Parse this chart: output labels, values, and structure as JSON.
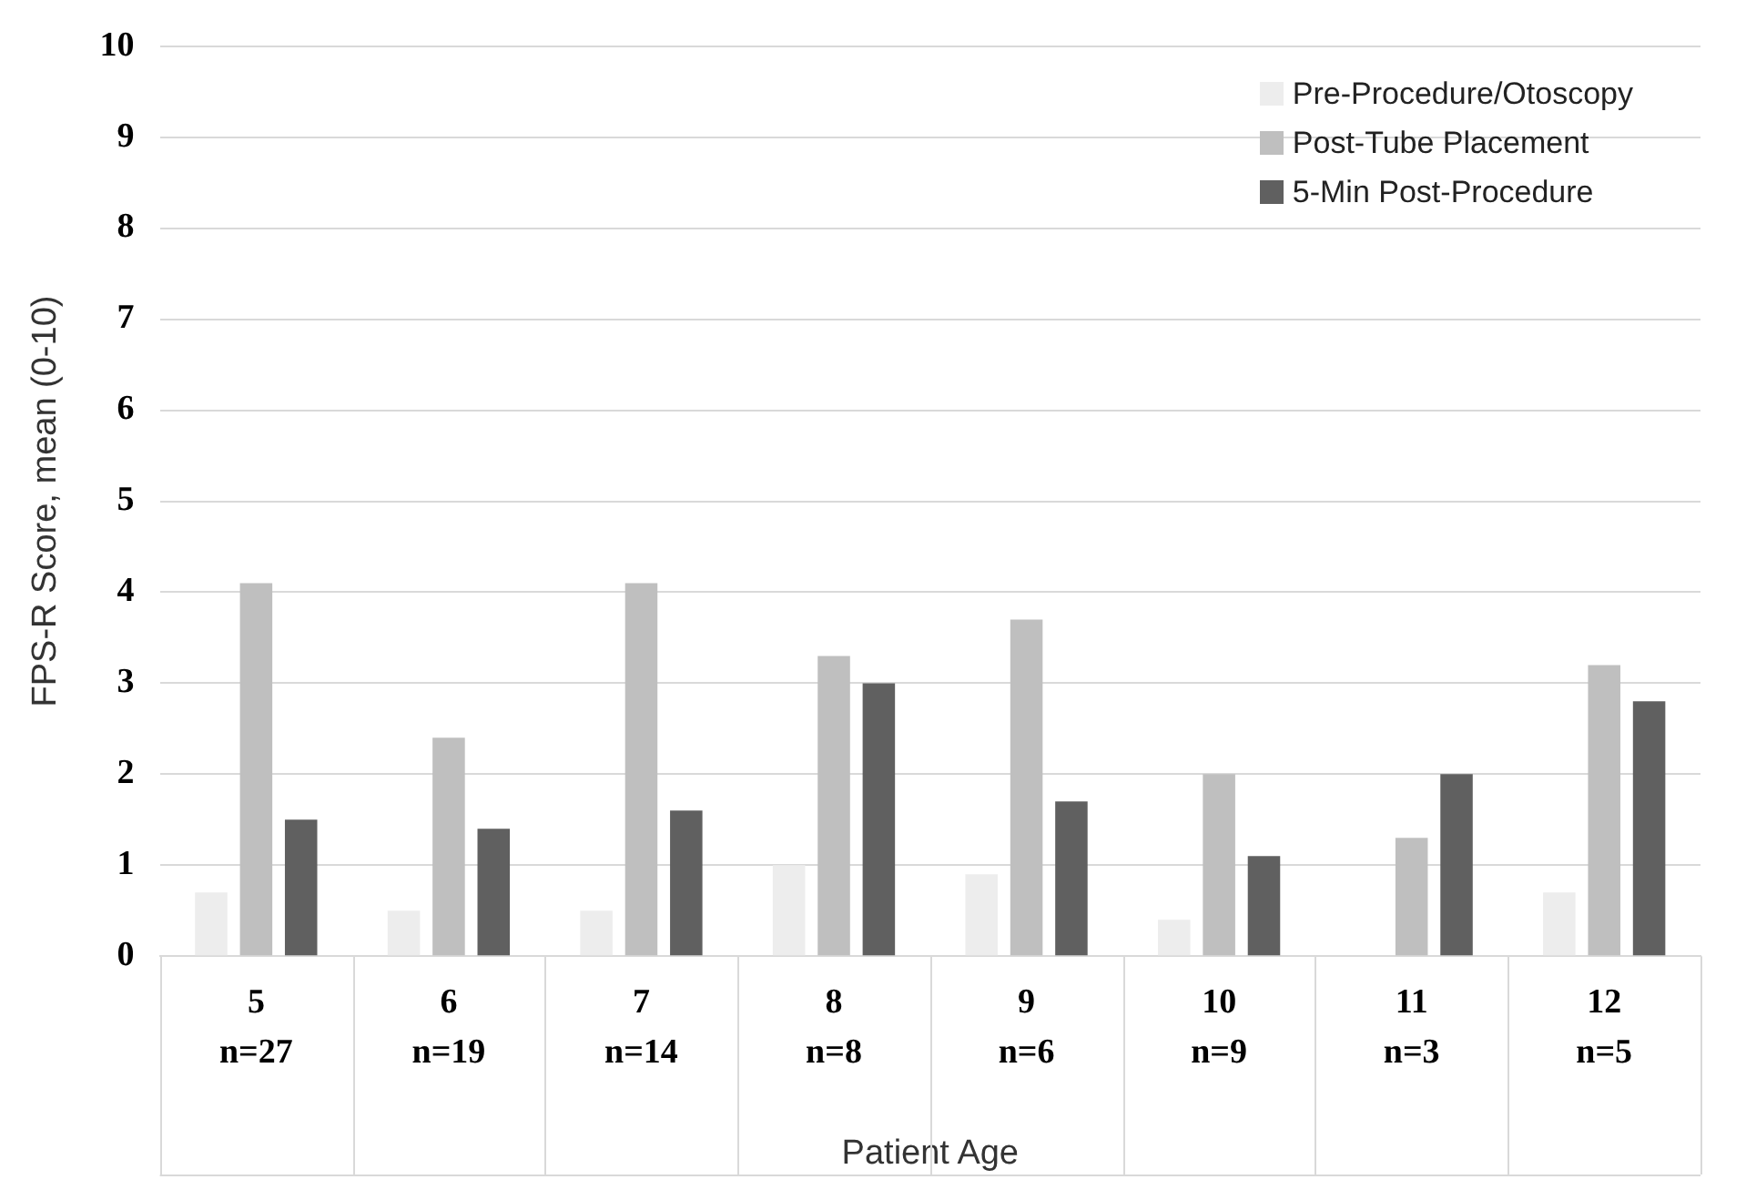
{
  "chart_data": {
    "type": "bar",
    "xlabel": "Patient Age",
    "ylabel": "FPS-R Score, mean (0-10)",
    "categories": [
      "5\nn=27",
      "6\nn=19",
      "7\nn=14",
      "8\nn=8",
      "9\nn=6",
      "10\nn=9",
      "11\nn=3",
      "12\nn=5"
    ],
    "series": [
      {
        "name": "Pre-Procedure/Otoscopy",
        "color": "#ededed",
        "values": [
          0.7,
          0.5,
          0.5,
          1.0,
          0.9,
          0.4,
          null,
          0.7
        ]
      },
      {
        "name": "Post-Tube Placement",
        "color": "#bfbfbf",
        "values": [
          4.1,
          2.4,
          4.1,
          3.3,
          3.7,
          2.0,
          1.3,
          3.2
        ]
      },
      {
        "name": "5-Min Post-Procedure",
        "color": "#606060",
        "values": [
          1.5,
          1.4,
          1.6,
          3.0,
          1.7,
          1.1,
          2.0,
          2.8
        ]
      }
    ],
    "ylim": [
      0,
      10
    ],
    "yticks": [
      0,
      1,
      2,
      3,
      4,
      5,
      6,
      7,
      8,
      9,
      10
    ],
    "grid": "y",
    "legend": "top right"
  }
}
